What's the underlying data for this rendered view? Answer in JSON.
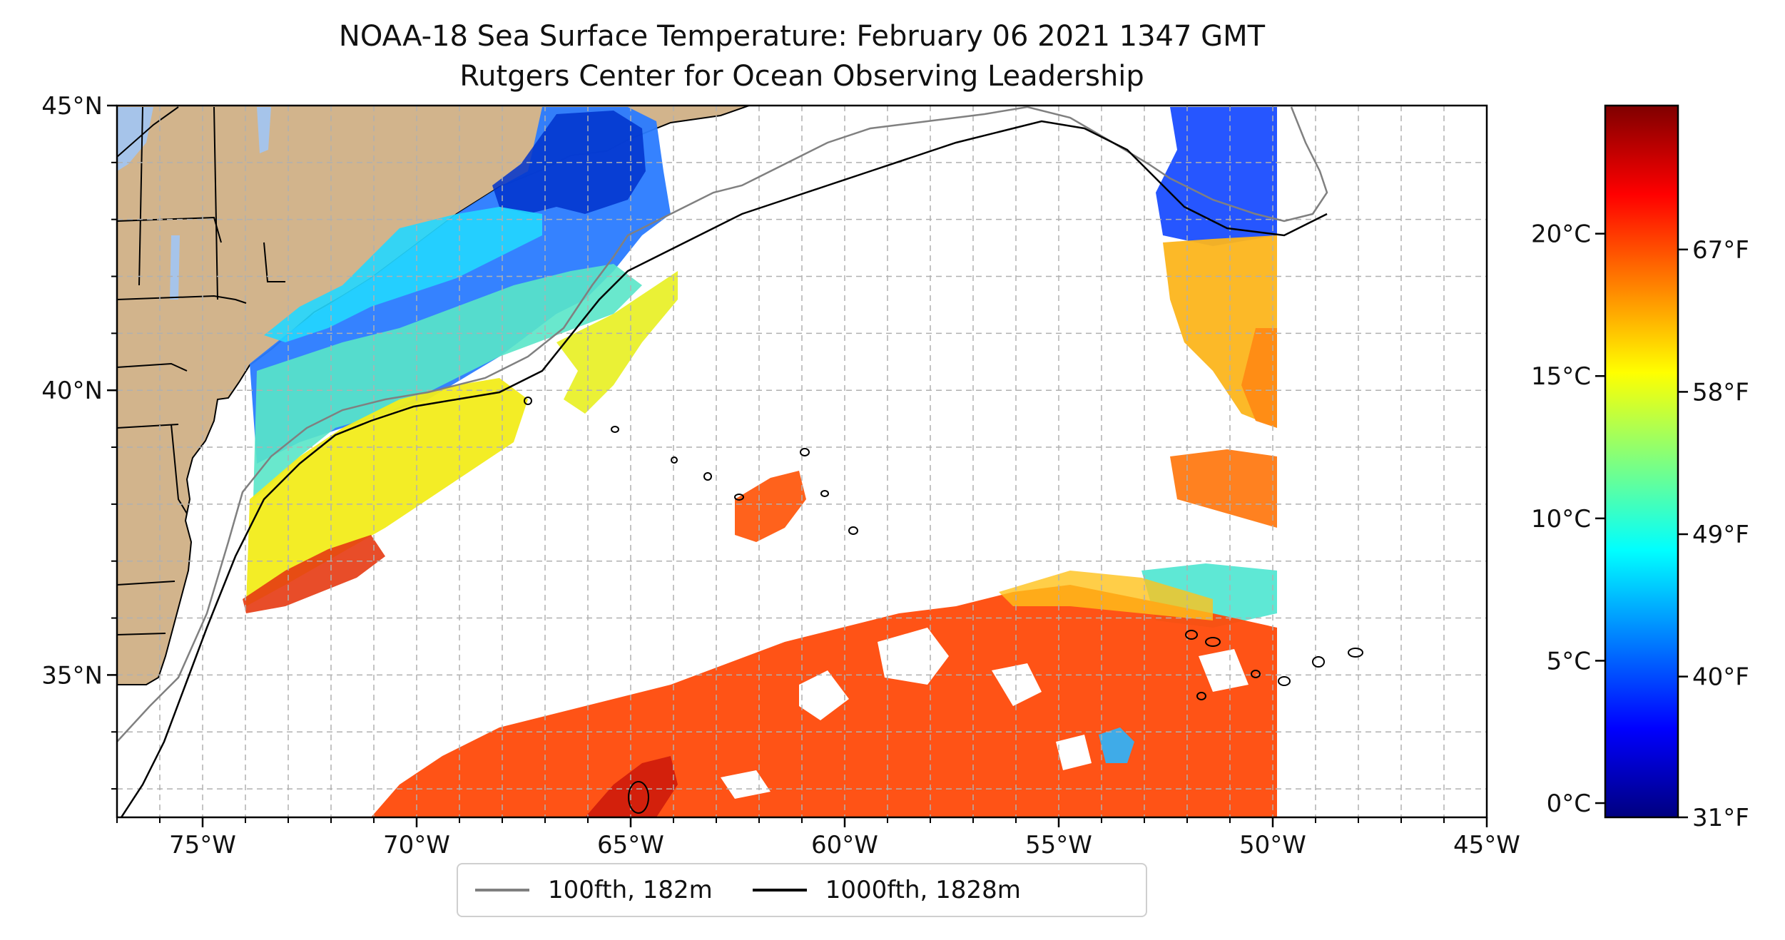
{
  "title_line1": "NOAA-18 Sea Surface Temperature: February 06 2021 1347 GMT",
  "title_line2": "Rutgers Center for Ocean Observing Leadership",
  "map": {
    "lon_range": [
      -77,
      -45
    ],
    "lat_range": [
      32.5,
      45
    ],
    "lat_ticks": [
      {
        "value": 45,
        "label": "45°N"
      },
      {
        "value": 40,
        "label": "40°N"
      },
      {
        "value": 35,
        "label": "35°N"
      }
    ],
    "lon_ticks": [
      {
        "value": -75,
        "label": "75°W"
      },
      {
        "value": -70,
        "label": "70°W"
      },
      {
        "value": -65,
        "label": "65°W"
      },
      {
        "value": -60,
        "label": "60°W"
      },
      {
        "value": -55,
        "label": "55°W"
      },
      {
        "value": -50,
        "label": "50°W"
      },
      {
        "value": -45,
        "label": "45°W"
      }
    ],
    "gridlines": true,
    "land_color": "#d2b48c",
    "water_color": "#a6c4ea"
  },
  "colorbar": {
    "celsius_ticks": [
      {
        "value": 0,
        "label": "0°C"
      },
      {
        "value": 5,
        "label": "5°C"
      },
      {
        "value": 10,
        "label": "10°C"
      },
      {
        "value": 15,
        "label": "15°C"
      },
      {
        "value": 20,
        "label": "20°C"
      }
    ],
    "fahrenheit_ticks": [
      {
        "value": 31,
        "label": "31°F"
      },
      {
        "value": 40,
        "label": "40°F"
      },
      {
        "value": 49,
        "label": "49°F"
      },
      {
        "value": 58,
        "label": "58°F"
      },
      {
        "value": 67,
        "label": "67°F"
      }
    ],
    "range_c": [
      -0.5,
      24.5
    ],
    "colormap": [
      "#00007f",
      "#0000ff",
      "#007fff",
      "#00ffff",
      "#7fff7f",
      "#ffff00",
      "#ff7f00",
      "#ff0000",
      "#7f0000"
    ]
  },
  "legend": {
    "items": [
      {
        "label": "100fth, 182m",
        "color": "#808080"
      },
      {
        "label": "1000fth, 1828m",
        "color": "#000000"
      }
    ]
  }
}
